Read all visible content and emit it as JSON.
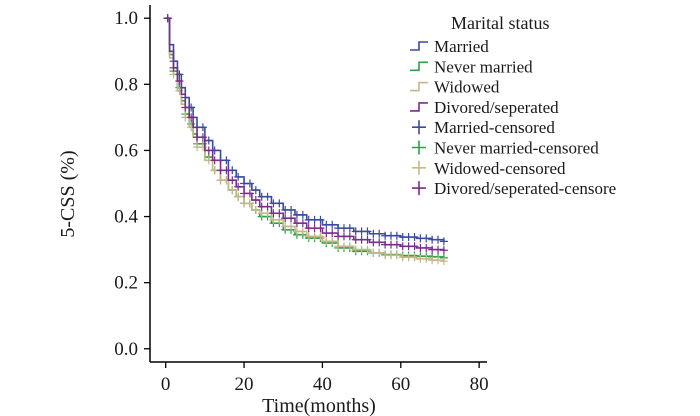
{
  "chart_data": {
    "type": "line",
    "title": "",
    "xlabel": "Time(months)",
    "ylabel": "5-CSS (%)",
    "xlim": [
      -4,
      82
    ],
    "ylim": [
      -0.04,
      1.04
    ],
    "xticks": [
      0,
      20,
      40,
      60,
      80
    ],
    "yticks": [
      0.0,
      0.2,
      0.4,
      0.6,
      0.8,
      1.0
    ],
    "ytick_labels": [
      "0.0",
      "0.2",
      "0.4",
      "0.6",
      "0.8",
      "1.0"
    ],
    "grid": false,
    "legend_position": "top-right",
    "legend": {
      "title": "Marital status",
      "entries": [
        {
          "label": "Married",
          "symbol": "step",
          "color": "#3b4a9c"
        },
        {
          "label": "Never married",
          "symbol": "step",
          "color": "#2ea043"
        },
        {
          "label": "Widowed",
          "symbol": "step",
          "color": "#c4b88a"
        },
        {
          "label": "Divored/seperated",
          "symbol": "step",
          "color": "#7b2d8e"
        },
        {
          "label": "Married-censored",
          "symbol": "plus",
          "color": "#3b4a9c"
        },
        {
          "label": "Never married-censored",
          "symbol": "plus",
          "color": "#2ea043"
        },
        {
          "label": "Widowed-censored",
          "symbol": "plus",
          "color": "#c4b88a"
        },
        {
          "label": "Divored/seperated-censore",
          "symbol": "plus",
          "color": "#7b2d8e"
        }
      ]
    },
    "series": [
      {
        "color": "#3b4a9c",
        "x": [
          0,
          1,
          2,
          3,
          4,
          5,
          6,
          7,
          8,
          10,
          12,
          14,
          16,
          18,
          20,
          22,
          24,
          27,
          30,
          33,
          36,
          40,
          44,
          48,
          52,
          56,
          60,
          64,
          68,
          71
        ],
        "y": [
          1.0,
          0.92,
          0.87,
          0.83,
          0.79,
          0.76,
          0.73,
          0.7,
          0.67,
          0.63,
          0.6,
          0.57,
          0.54,
          0.52,
          0.5,
          0.48,
          0.46,
          0.44,
          0.42,
          0.405,
          0.39,
          0.375,
          0.365,
          0.355,
          0.348,
          0.342,
          0.338,
          0.334,
          0.33,
          0.325
        ]
      },
      {
        "color": "#2ea043",
        "x": [
          0,
          1,
          2,
          3,
          4,
          5,
          6,
          7,
          8,
          10,
          12,
          14,
          16,
          18,
          20,
          22,
          24,
          27,
          30,
          33,
          36,
          40,
          44,
          48,
          52,
          56,
          60,
          64,
          68,
          71
        ],
        "y": [
          1.0,
          0.89,
          0.84,
          0.79,
          0.75,
          0.71,
          0.68,
          0.65,
          0.62,
          0.58,
          0.54,
          0.51,
          0.48,
          0.46,
          0.44,
          0.42,
          0.4,
          0.38,
          0.36,
          0.345,
          0.335,
          0.32,
          0.305,
          0.295,
          0.29,
          0.285,
          0.282,
          0.28,
          0.278,
          0.275
        ]
      },
      {
        "color": "#c4b88a",
        "x": [
          0,
          1,
          2,
          3,
          4,
          5,
          6,
          7,
          8,
          10,
          12,
          14,
          16,
          18,
          20,
          22,
          24,
          27,
          30,
          33,
          36,
          40,
          44,
          48,
          52,
          56,
          60,
          64,
          68,
          71
        ],
        "y": [
          1.0,
          0.88,
          0.83,
          0.78,
          0.74,
          0.7,
          0.67,
          0.64,
          0.61,
          0.57,
          0.54,
          0.51,
          0.48,
          0.46,
          0.44,
          0.42,
          0.41,
          0.39,
          0.37,
          0.355,
          0.34,
          0.325,
          0.31,
          0.3,
          0.29,
          0.283,
          0.277,
          0.272,
          0.268,
          0.265
        ]
      },
      {
        "color": "#7b2d8e",
        "x": [
          0,
          1,
          2,
          3,
          4,
          5,
          6,
          7,
          8,
          10,
          12,
          14,
          16,
          18,
          20,
          22,
          24,
          27,
          30,
          33,
          36,
          40,
          44,
          48,
          52,
          56,
          60,
          64,
          68,
          71
        ],
        "y": [
          1.0,
          0.9,
          0.85,
          0.81,
          0.77,
          0.73,
          0.7,
          0.67,
          0.64,
          0.6,
          0.57,
          0.54,
          0.51,
          0.49,
          0.47,
          0.45,
          0.43,
          0.41,
          0.395,
          0.38,
          0.365,
          0.35,
          0.34,
          0.33,
          0.322,
          0.315,
          0.31,
          0.305,
          0.3,
          0.298
        ]
      }
    ]
  }
}
